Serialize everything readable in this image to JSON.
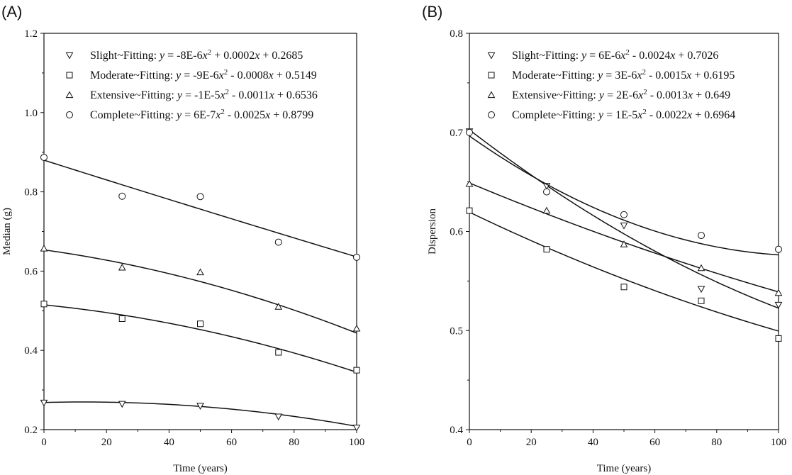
{
  "chart_data": [
    {
      "panel_label": "(A)",
      "type": "scatter",
      "xlabel": "Time (years)",
      "ylabel": "Median (g)",
      "xlim": [
        0,
        100
      ],
      "ylim": [
        0.2,
        1.2
      ],
      "xticks": [
        0,
        20,
        40,
        60,
        80,
        100
      ],
      "yticks": [
        0.2,
        0.4,
        0.6,
        0.8,
        1.0,
        1.2
      ],
      "xtick_labels": [
        "0",
        "20",
        "40",
        "60",
        "80",
        "100"
      ],
      "ytick_labels": [
        "0.2",
        "0.4",
        "0.6",
        "0.8",
        "1.0",
        "1.2"
      ],
      "legend_position": "top-right",
      "series": [
        {
          "name": "Slight~Fitting:",
          "eq_prefix": "y",
          "eq_mid": "= -8E-6",
          "eq_x": "x",
          "eq_sup": "2",
          "eq_tail": "+ 0.0002",
          "eq_x2": "x",
          "eq_end": "+ 0.2685",
          "marker": "triangle-down",
          "x": [
            0,
            25,
            50,
            75,
            100
          ],
          "y": [
            0.268,
            0.265,
            0.26,
            0.233,
            0.205
          ],
          "coef": [
            -8e-06,
            0.0002,
            0.2685
          ]
        },
        {
          "name": "Moderate~Fitting:",
          "eq_prefix": "y",
          "eq_mid": "= -9E-6",
          "eq_x": "x",
          "eq_sup": "2",
          "eq_tail": "- 0.0008",
          "eq_x2": "x",
          "eq_end": "+ 0.5149",
          "marker": "square",
          "x": [
            0,
            25,
            50,
            75,
            100
          ],
          "y": [
            0.517,
            0.48,
            0.467,
            0.395,
            0.35
          ],
          "coef": [
            -9e-06,
            -0.0008,
            0.5149
          ]
        },
        {
          "name": "Extensive~Fitting:",
          "eq_prefix": "y",
          "eq_mid": "= -1E-5",
          "eq_x": "x",
          "eq_sup": "2",
          "eq_tail": "- 0.0011",
          "eq_x2": "x",
          "eq_end": "+ 0.6536",
          "marker": "triangle-up",
          "x": [
            0,
            25,
            50,
            75,
            100
          ],
          "y": [
            0.657,
            0.609,
            0.597,
            0.51,
            0.455
          ],
          "coef": [
            -1e-05,
            -0.0011,
            0.6536
          ]
        },
        {
          "name": "Complete~Fitting:",
          "eq_prefix": "y",
          "eq_mid": "= 6E-7",
          "eq_x": "x",
          "eq_sup": "2",
          "eq_tail": "- 0.0025",
          "eq_x2": "x",
          "eq_end": "+ 0.8799",
          "marker": "circle",
          "x": [
            0,
            25,
            50,
            75,
            100
          ],
          "y": [
            0.887,
            0.789,
            0.788,
            0.673,
            0.635
          ],
          "coef": [
            6e-07,
            -0.0025,
            0.8799
          ]
        }
      ]
    },
    {
      "panel_label": "(B)",
      "type": "scatter",
      "xlabel": "Time (years)",
      "ylabel": "Dispersion",
      "xlim": [
        0,
        100
      ],
      "ylim": [
        0.4,
        0.8
      ],
      "xticks": [
        0,
        20,
        40,
        60,
        80,
        100
      ],
      "yticks": [
        0.4,
        0.5,
        0.6,
        0.7,
        0.8
      ],
      "xtick_labels": [
        "0",
        "20",
        "40",
        "60",
        "80",
        "100"
      ],
      "ytick_labels": [
        "0.4",
        "0.5",
        "0.6",
        "0.7",
        "0.8"
      ],
      "legend_position": "top-right",
      "series": [
        {
          "name": "Slight~Fitting:",
          "eq_prefix": "y",
          "eq_mid": "= 6E-6",
          "eq_x": "x",
          "eq_sup": "2",
          "eq_tail": "- 0.0024",
          "eq_x2": "x",
          "eq_end": "+ 0.7026",
          "marker": "triangle-down",
          "x": [
            0,
            25,
            50,
            75,
            100
          ],
          "y": [
            0.701,
            0.646,
            0.606,
            0.542,
            0.526
          ],
          "coef": [
            6e-06,
            -0.0024,
            0.7026
          ]
        },
        {
          "name": "Moderate~Fitting:",
          "eq_prefix": "y",
          "eq_mid": "= 3E-6",
          "eq_x": "x",
          "eq_sup": "2",
          "eq_tail": "- 0.0015",
          "eq_x2": "x",
          "eq_end": "+ 0.6195",
          "marker": "square",
          "x": [
            0,
            25,
            50,
            75,
            100
          ],
          "y": [
            0.621,
            0.582,
            0.544,
            0.53,
            0.492
          ],
          "coef": [
            3e-06,
            -0.0015,
            0.6195
          ]
        },
        {
          "name": "Extensive~Fitting:",
          "eq_prefix": "y",
          "eq_mid": "= 2E-6",
          "eq_x": "x",
          "eq_sup": "2",
          "eq_tail": "- 0.0013",
          "eq_x2": "x",
          "eq_end": "+ 0.649",
          "marker": "triangle-up",
          "x": [
            0,
            25,
            50,
            75,
            100
          ],
          "y": [
            0.648,
            0.621,
            0.587,
            0.563,
            0.538
          ],
          "coef": [
            2e-06,
            -0.0013,
            0.649
          ]
        },
        {
          "name": "Complete~Fitting:",
          "eq_prefix": "y",
          "eq_mid": "= 1E-5",
          "eq_x": "x",
          "eq_sup": "2",
          "eq_tail": "- 0.0022",
          "eq_x2": "x",
          "eq_end": "+ 0.6964",
          "marker": "circle",
          "x": [
            0,
            25,
            50,
            75,
            100
          ],
          "y": [
            0.7,
            0.64,
            0.617,
            0.596,
            0.582
          ],
          "coef": [
            1e-05,
            -0.0022,
            0.6964
          ]
        }
      ]
    }
  ]
}
